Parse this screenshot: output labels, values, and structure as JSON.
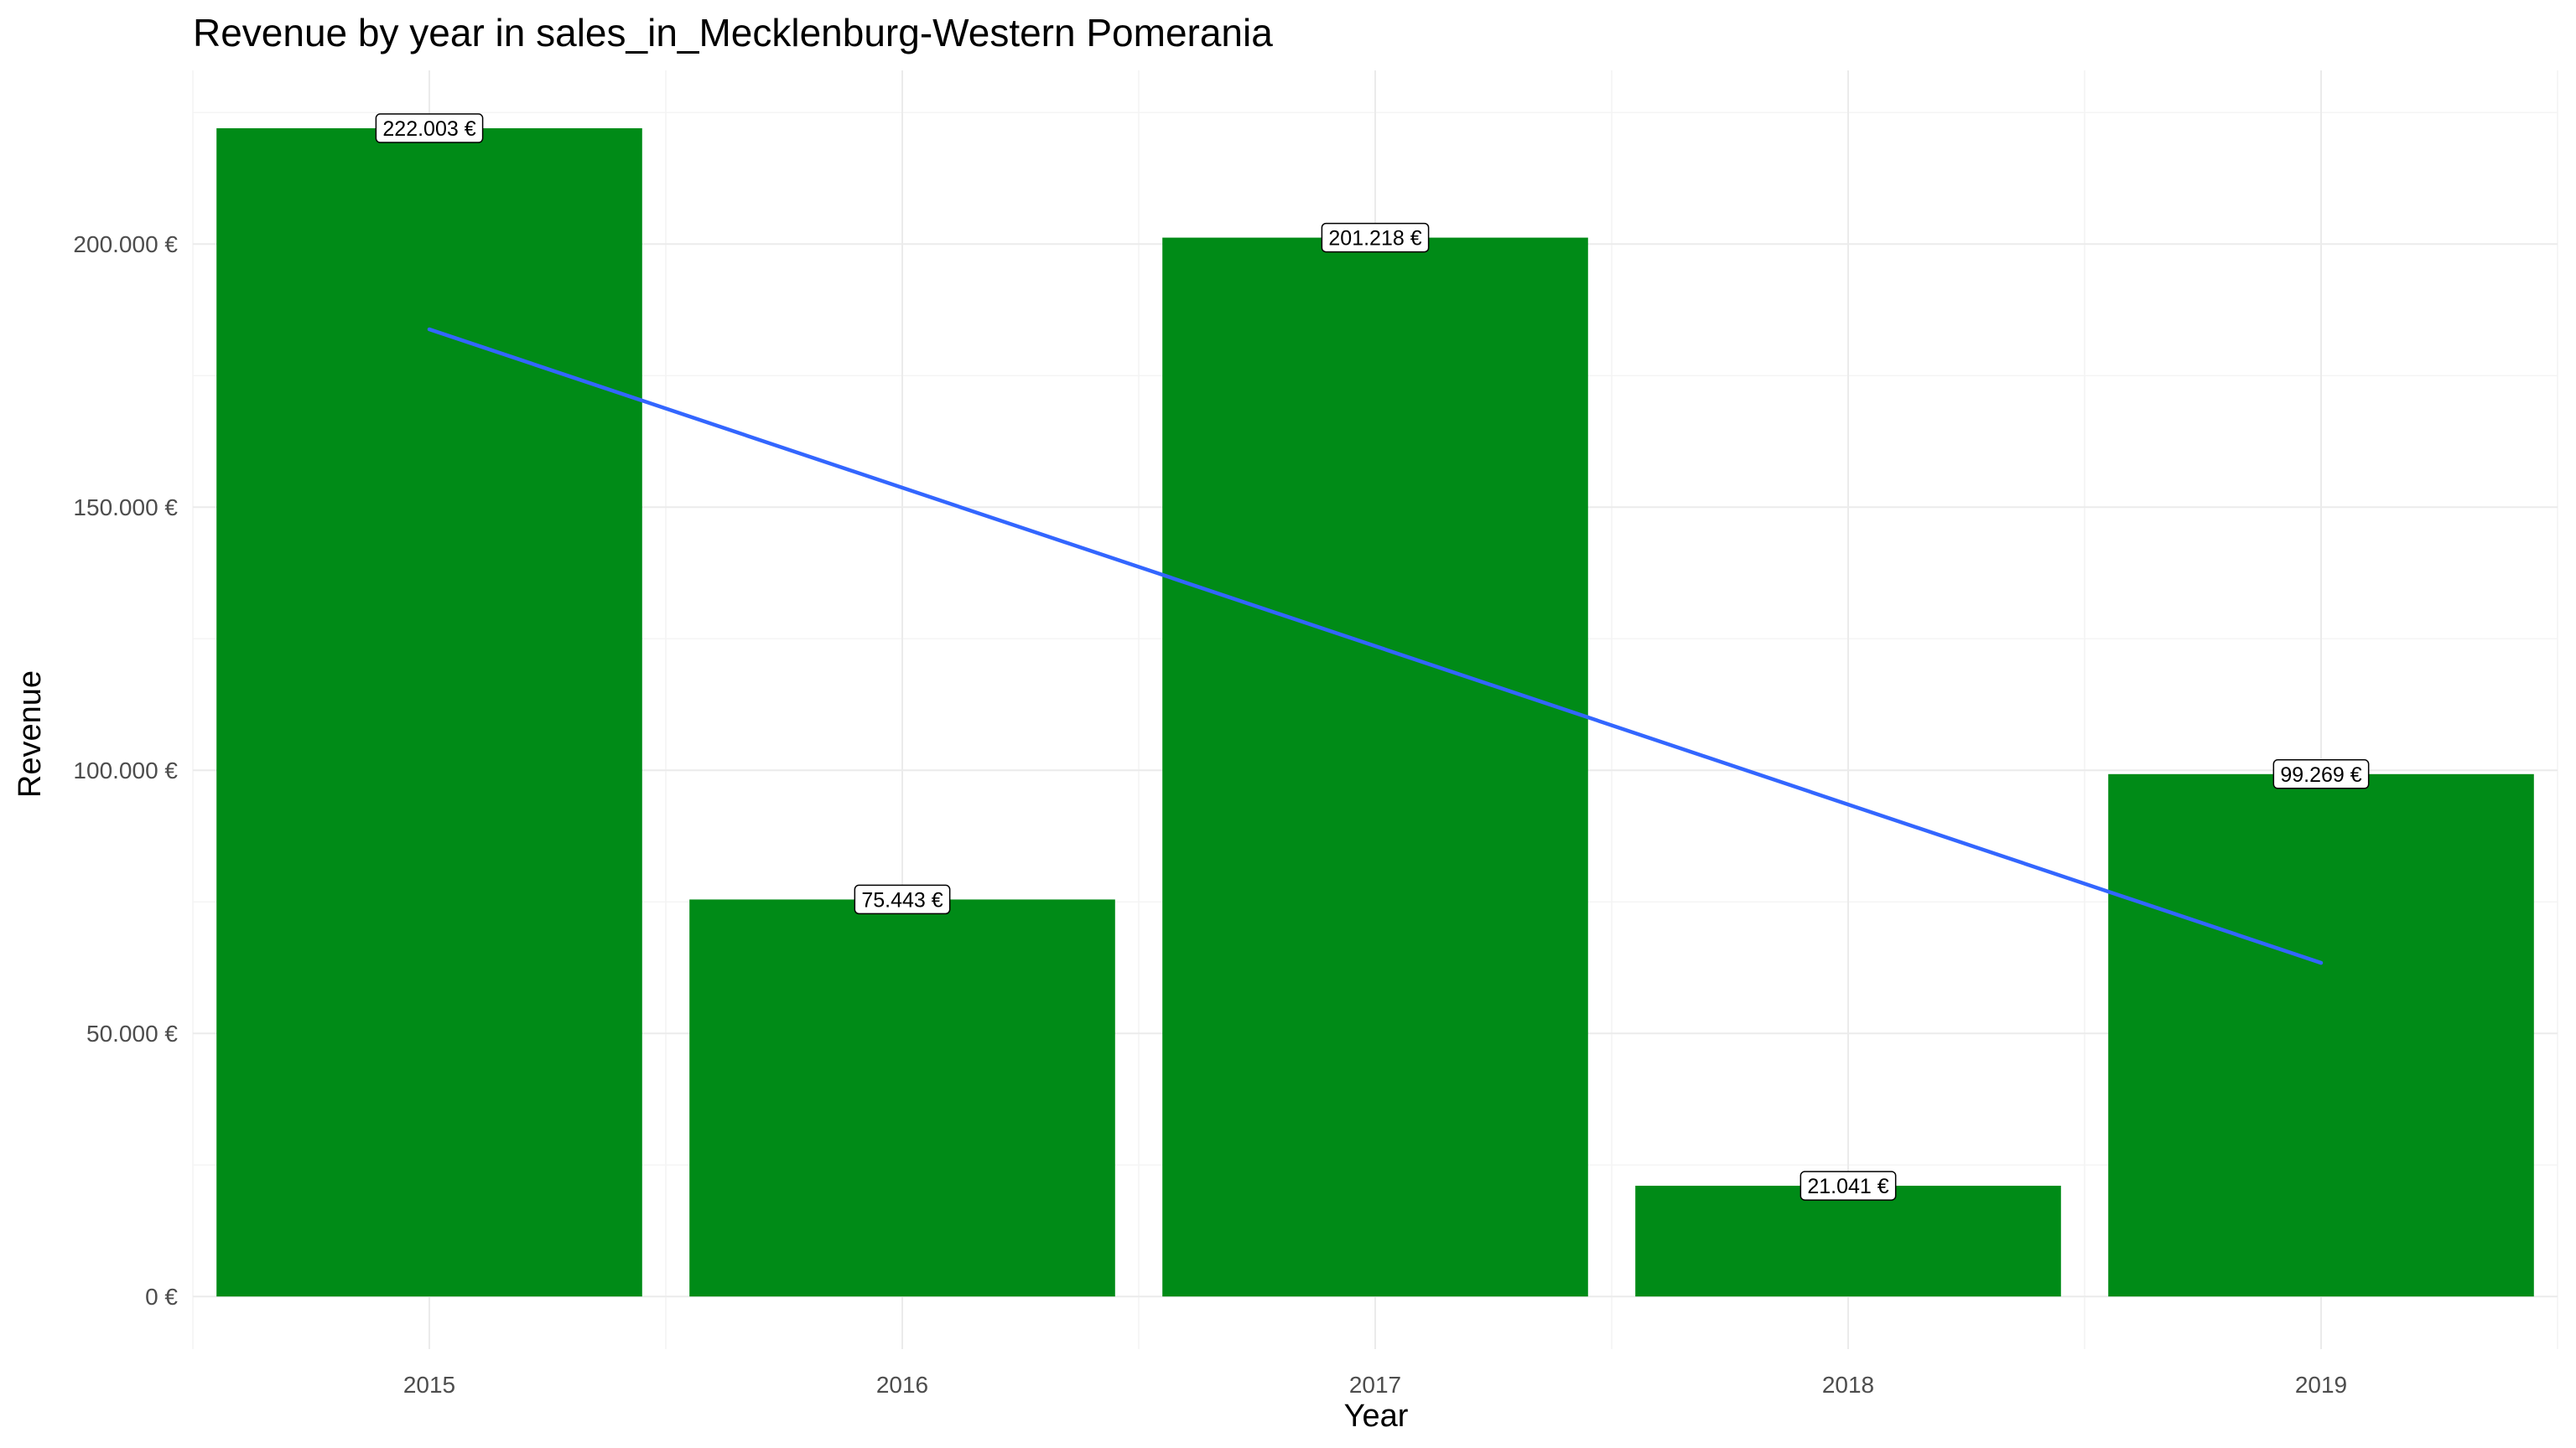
{
  "chart_data": {
    "type": "bar",
    "title": "Revenue by year in sales_in_Mecklenburg-Western Pomerania",
    "xlabel": "Year",
    "ylabel": "Revenue",
    "categories": [
      "2015",
      "2016",
      "2017",
      "2018",
      "2019"
    ],
    "values": [
      222003,
      75443,
      201218,
      21041,
      99269
    ],
    "data_labels": [
      "222.003 €",
      "75.443 €",
      "201.218 €",
      "21.041 €",
      "99.269 €"
    ],
    "ylim": [
      -10000,
      233000
    ],
    "y_ticks": [
      0,
      50000,
      100000,
      150000,
      200000
    ],
    "y_tick_labels": [
      "0 €",
      "50.000 €",
      "100.000 €",
      "150.000 €",
      "200.000 €"
    ],
    "grid": true,
    "legend": "none",
    "bar_color": "#008b17",
    "trend_line": {
      "type": "linear",
      "color": "#3366ff",
      "start": {
        "x": "2015",
        "y": 183800
      },
      "end": {
        "x": "2019",
        "y": 63400
      }
    }
  }
}
